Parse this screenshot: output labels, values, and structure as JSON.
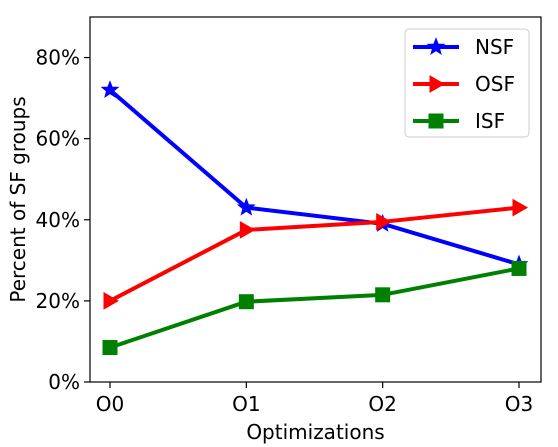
{
  "chart_data": {
    "type": "line",
    "categories": [
      "O0",
      "O1",
      "O2",
      "O3"
    ],
    "xlabel": "Optimizations",
    "ylabel": "Percent of SF groups",
    "ylim": [
      0,
      90
    ],
    "yticks": [
      0,
      20,
      40,
      60,
      80
    ],
    "ytick_labels": [
      "0%",
      "20%",
      "40%",
      "60%",
      "80%"
    ],
    "grid": false,
    "legend_position": "top-right",
    "series": [
      {
        "name": "NSF",
        "values": [
          72,
          43,
          39,
          29
        ],
        "color": "#0000ff",
        "marker": "star"
      },
      {
        "name": "OSF",
        "values": [
          20,
          37.5,
          39.5,
          43
        ],
        "color": "#ff0000",
        "marker": "triangle-right"
      },
      {
        "name": "ISF",
        "values": [
          8.5,
          19.8,
          21.5,
          28
        ],
        "color": "#008000",
        "marker": "square"
      }
    ]
  }
}
